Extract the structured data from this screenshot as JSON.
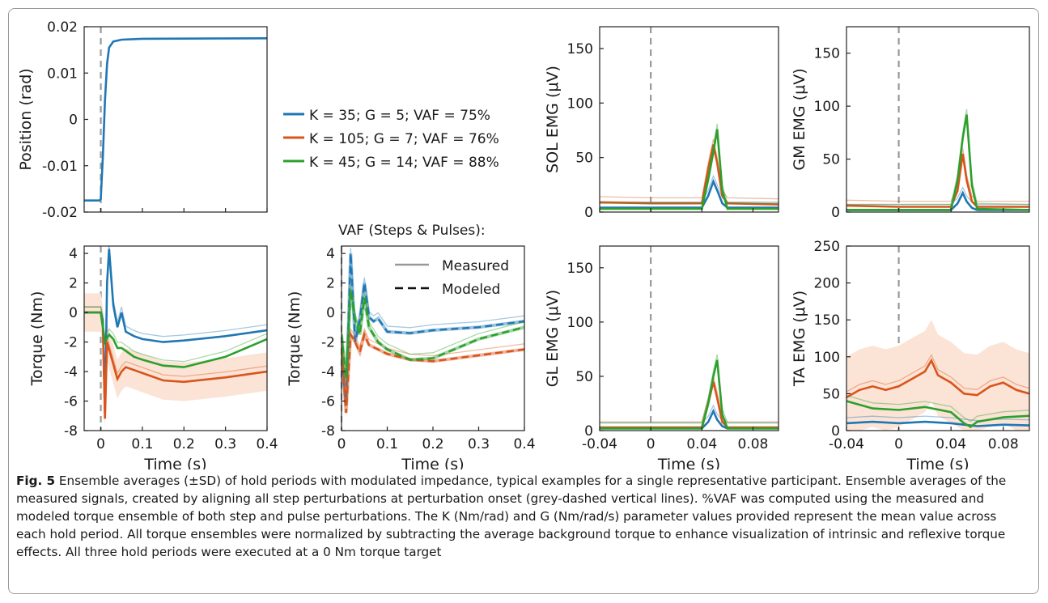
{
  "figure": {
    "caption_label": "Fig. 5",
    "caption_text": "Ensemble averages (±SD) of hold periods with modulated impedance, typical examples for a single representative participant. Ensemble averages of the measured signals, created by aligning all step perturbations at perturbation onset (grey-dashed vertical lines). %VAF was computed using the measured and modeled torque ensemble of both step and pulse perturbations. The K (Nm/rad) and G (Nm/rad/s) parameter values provided represent the mean value across each hold period. All torque ensembles were normalized by subtracting the average background torque to enhance visualization of intrinsic and reflexive torque effects. All three hold periods were executed at a 0 Nm torque target"
  },
  "colors": {
    "blue": "#1f77b4",
    "orange": "#d9541a",
    "green": "#2ca02c",
    "grey": "#999999",
    "orange_band": "#fbe3d6"
  },
  "legend": {
    "entries": [
      {
        "label": "K = 35; G = 5; VAF = 75%",
        "color": "#1f77b4"
      },
      {
        "label": "K = 105; G = 7; VAF = 76%",
        "color": "#d9541a"
      },
      {
        "label": "K = 45; G = 14; VAF = 88%",
        "color": "#2ca02c"
      }
    ],
    "vaf_title": "VAF (Steps & Pulses):",
    "measured_label": "Measured",
    "modeled_label": "Modeled"
  },
  "chart_data": [
    {
      "id": "position",
      "type": "line",
      "xlabel": "",
      "ylabel": "Position (rad)",
      "xlim": [
        -0.04,
        0.4
      ],
      "ylim": [
        -0.02,
        0.02
      ],
      "yticks": [
        "-0.02",
        "-0.01",
        "0",
        "0.01",
        "0.02"
      ],
      "series": [
        {
          "x": [
            -0.04,
            -0.003,
            0.0,
            0.005,
            0.01,
            0.015,
            0.02,
            0.03,
            0.05,
            0.1,
            0.4
          ],
          "y": [
            -0.0175,
            -0.0175,
            -0.0172,
            -0.008,
            0.004,
            0.012,
            0.0155,
            0.0168,
            0.0172,
            0.0174,
            0.0175
          ]
        }
      ]
    },
    {
      "id": "torque",
      "type": "line",
      "xlabel": "Time (s)",
      "ylabel": "Torque (Nm)",
      "xlim": [
        -0.04,
        0.4
      ],
      "ylim": [
        -8,
        4.5
      ],
      "xticks": [
        "0",
        "0.1",
        "0.2",
        "0.3",
        "0.4"
      ],
      "yticks": [
        "-8",
        "-6",
        "-4",
        "-2",
        "0",
        "2",
        "4"
      ],
      "series": [
        {
          "x": [
            -0.04,
            0.0,
            0.005,
            0.01,
            0.015,
            0.02,
            0.03,
            0.04,
            0.05,
            0.06,
            0.08,
            0.1,
            0.15,
            0.2,
            0.3,
            0.4
          ],
          "y": [
            0,
            0,
            -0.5,
            -6.8,
            2.0,
            4.3,
            0.5,
            -1.0,
            0.0,
            -1.3,
            -1.6,
            -1.8,
            -2.0,
            -1.9,
            -1.6,
            -1.2
          ]
        },
        {
          "x": [
            -0.04,
            0.0,
            0.005,
            0.01,
            0.015,
            0.02,
            0.03,
            0.04,
            0.05,
            0.06,
            0.08,
            0.1,
            0.15,
            0.2,
            0.3,
            0.4
          ],
          "y": [
            0,
            0,
            -1.0,
            -7.2,
            -2.0,
            -2.5,
            -3.5,
            -4.5,
            -4.0,
            -3.7,
            -3.9,
            -4.1,
            -4.6,
            -4.7,
            -4.4,
            -4.0
          ]
        },
        {
          "x": [
            -0.04,
            0.0,
            0.01,
            0.02,
            0.03,
            0.04,
            0.05,
            0.06,
            0.08,
            0.1,
            0.15,
            0.2,
            0.3,
            0.4
          ],
          "y": [
            0,
            0,
            -2.0,
            -1.5,
            -1.8,
            -2.4,
            -2.4,
            -2.6,
            -3.0,
            -3.2,
            -3.6,
            -3.7,
            -3.0,
            -1.8
          ]
        }
      ]
    },
    {
      "id": "model",
      "type": "line",
      "xlabel": "Time (s)",
      "ylabel": "Torque (Nm)",
      "xlim": [
        0,
        0.4
      ],
      "ylim": [
        -8,
        4.5
      ],
      "xticks": [
        "0",
        "0.1",
        "0.2",
        "0.3",
        "0.4"
      ],
      "yticks": [
        "-8",
        "-6",
        "-4",
        "-2",
        "0",
        "2",
        "4"
      ],
      "series": [
        {
          "x": [
            0.0,
            0.01,
            0.02,
            0.03,
            0.04,
            0.05,
            0.06,
            0.07,
            0.08,
            0.1,
            0.15,
            0.2,
            0.3,
            0.4
          ],
          "y": [
            -3.0,
            -6.3,
            4.0,
            -2.0,
            -0.5,
            2.0,
            -0.3,
            -0.6,
            -0.4,
            -1.3,
            -1.4,
            -1.2,
            -1.0,
            -0.6
          ]
        },
        {
          "x": [
            0.0,
            0.01,
            0.02,
            0.03,
            0.04,
            0.05,
            0.06,
            0.08,
            0.1,
            0.15,
            0.2,
            0.3,
            0.4
          ],
          "y": [
            -2.0,
            -6.8,
            -1.5,
            -2.0,
            -2.7,
            -1.5,
            -2.2,
            -2.5,
            -2.8,
            -3.2,
            -3.3,
            -2.9,
            -2.5
          ]
        },
        {
          "x": [
            0.0,
            0.01,
            0.02,
            0.03,
            0.04,
            0.05,
            0.06,
            0.08,
            0.1,
            0.15,
            0.2,
            0.3,
            0.4
          ],
          "y": [
            -1.5,
            -4.5,
            1.5,
            -0.5,
            -1.5,
            1.0,
            -1.0,
            -2.0,
            -2.5,
            -3.2,
            -3.1,
            -1.8,
            -1.0
          ]
        }
      ]
    },
    {
      "id": "sol",
      "type": "line",
      "ylabel": "SOL EMG (μV)",
      "xlim": [
        -0.04,
        0.1
      ],
      "ylim": [
        0,
        170
      ],
      "yticks": [
        "0",
        "50",
        "100",
        "150"
      ],
      "series": [
        {
          "x": [
            -0.04,
            0.0,
            0.04,
            0.045,
            0.049,
            0.052,
            0.056,
            0.06,
            0.1
          ],
          "y": [
            4,
            4,
            4,
            15,
            28,
            20,
            8,
            4,
            4
          ]
        },
        {
          "x": [
            -0.04,
            0.0,
            0.04,
            0.045,
            0.049,
            0.052,
            0.056,
            0.06,
            0.1
          ],
          "y": [
            9,
            8,
            8,
            40,
            62,
            45,
            15,
            8,
            7
          ]
        },
        {
          "x": [
            -0.04,
            0.0,
            0.04,
            0.045,
            0.049,
            0.052,
            0.056,
            0.06,
            0.1
          ],
          "y": [
            3,
            3,
            3,
            30,
            55,
            76,
            20,
            3,
            3
          ]
        }
      ]
    },
    {
      "id": "gm",
      "type": "line",
      "ylabel": "GM EMG (μV)",
      "xlim": [
        -0.04,
        0.1
      ],
      "ylim": [
        0,
        175
      ],
      "yticks": [
        "0",
        "50",
        "100",
        "150"
      ],
      "series": [
        {
          "x": [
            -0.04,
            0.0,
            0.04,
            0.045,
            0.049,
            0.052,
            0.056,
            0.06,
            0.1
          ],
          "y": [
            2,
            2,
            2,
            8,
            18,
            10,
            4,
            2,
            2
          ]
        },
        {
          "x": [
            -0.04,
            0.0,
            0.04,
            0.045,
            0.049,
            0.052,
            0.056,
            0.06,
            0.1
          ],
          "y": [
            6,
            5,
            5,
            20,
            55,
            30,
            10,
            5,
            5
          ]
        },
        {
          "x": [
            -0.04,
            0.0,
            0.04,
            0.045,
            0.049,
            0.052,
            0.056,
            0.06,
            0.1
          ],
          "y": [
            2,
            2,
            2,
            30,
            70,
            92,
            25,
            3,
            2
          ]
        }
      ]
    },
    {
      "id": "gl",
      "type": "line",
      "ylabel": "GL EMG (μV)",
      "xlabel": "Time (s)",
      "xlim": [
        -0.04,
        0.1
      ],
      "ylim": [
        0,
        170
      ],
      "xticks": [
        "-0.04",
        "0",
        "0.04",
        "0.08"
      ],
      "yticks": [
        "0",
        "50",
        "100",
        "150"
      ],
      "series": [
        {
          "x": [
            -0.04,
            0.0,
            0.04,
            0.045,
            0.049,
            0.052,
            0.056,
            0.06,
            0.1
          ],
          "y": [
            2,
            2,
            2,
            8,
            18,
            10,
            4,
            2,
            2
          ]
        },
        {
          "x": [
            -0.04,
            0.0,
            0.04,
            0.045,
            0.049,
            0.052,
            0.056,
            0.06,
            0.1
          ],
          "y": [
            3,
            3,
            3,
            25,
            45,
            30,
            8,
            3,
            3
          ]
        },
        {
          "x": [
            -0.04,
            0.0,
            0.04,
            0.045,
            0.049,
            0.052,
            0.056,
            0.06,
            0.1
          ],
          "y": [
            2,
            2,
            2,
            25,
            50,
            65,
            15,
            2,
            2
          ]
        }
      ]
    },
    {
      "id": "ta",
      "type": "line",
      "ylabel": "TA EMG (μV)",
      "xlabel": "Time (s)",
      "xlim": [
        -0.04,
        0.1
      ],
      "ylim": [
        0,
        250
      ],
      "xticks": [
        "-0.04",
        "0",
        "0.04",
        "0.08"
      ],
      "yticks": [
        "0",
        "50",
        "100",
        "150",
        "200",
        "250"
      ],
      "series": [
        {
          "x": [
            -0.04,
            -0.02,
            0.0,
            0.02,
            0.04,
            0.05,
            0.06,
            0.08,
            0.1
          ],
          "y": [
            10,
            12,
            10,
            12,
            10,
            8,
            6,
            8,
            7
          ]
        },
        {
          "x": [
            -0.04,
            -0.03,
            -0.02,
            -0.01,
            0.0,
            0.01,
            0.02,
            0.025,
            0.03,
            0.04,
            0.05,
            0.06,
            0.07,
            0.08,
            0.09,
            0.1
          ],
          "y": [
            45,
            55,
            60,
            55,
            60,
            70,
            80,
            95,
            75,
            65,
            50,
            48,
            60,
            65,
            55,
            50
          ]
        },
        {
          "x": [
            -0.04,
            -0.02,
            0.0,
            0.02,
            0.04,
            0.05,
            0.055,
            0.06,
            0.08,
            0.1
          ],
          "y": [
            40,
            30,
            28,
            32,
            25,
            10,
            5,
            12,
            18,
            20
          ]
        }
      ]
    }
  ]
}
